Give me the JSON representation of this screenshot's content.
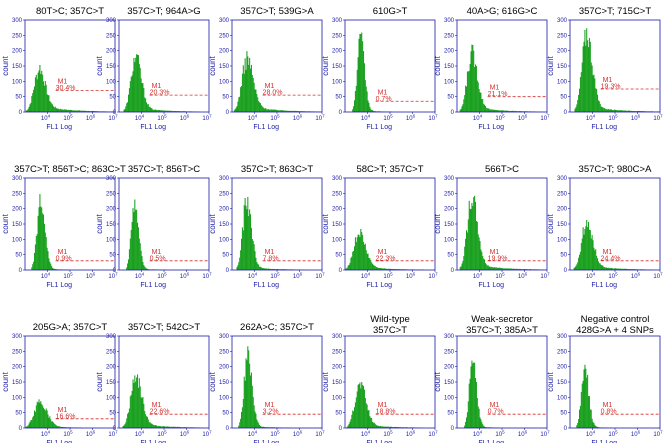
{
  "figure": {
    "background": "#ffffff"
  },
  "style": {
    "fill_color": "#19a01e",
    "axis_color": "#1a1aa8",
    "marker_color": "#d32f2f"
  },
  "chart_data": {
    "type": "histogram-grid",
    "rows": 3,
    "cols": 6,
    "y_label": "count",
    "x_label": "FL1 Log",
    "y_ticks": [
      "0",
      "50",
      "100",
      "150",
      "200",
      "250",
      "300"
    ],
    "y_range": [
      0,
      300
    ],
    "x_ticks": [
      {
        "base": "10",
        "exp": "4"
      },
      {
        "base": "10",
        "exp": "5"
      },
      {
        "base": "10",
        "exp": "6"
      },
      {
        "base": "10",
        "exp": "7"
      }
    ],
    "marker_label": "M1",
    "panels": [
      {
        "title": [
          "80T>C; 357C>T"
        ],
        "gate": "30.4%",
        "peak": 0.15,
        "height": 150,
        "width": 0.07,
        "tail": 0.18,
        "gate_y": 70
      },
      {
        "title": [
          "357C>T; 964A>G"
        ],
        "gate": "20.3%",
        "peak": 0.18,
        "height": 200,
        "width": 0.065,
        "tail": 0.1,
        "gate_y": 55
      },
      {
        "title": [
          "357C>T; 539G>A"
        ],
        "gate": "28.0%",
        "peak": 0.16,
        "height": 190,
        "width": 0.07,
        "tail": 0.14,
        "gate_y": 55
      },
      {
        "title": [
          "610G>T"
        ],
        "gate": "0.7%",
        "peak": 0.17,
        "height": 270,
        "width": 0.045,
        "tail": 0.02,
        "gate_y": 35
      },
      {
        "title": [
          "40A>G; 616G>C"
        ],
        "gate": "21.1%",
        "peak": 0.16,
        "height": 210,
        "width": 0.065,
        "tail": 0.1,
        "gate_y": 50
      },
      {
        "title": [
          "357C>T; 715C>T"
        ],
        "gate": "19.3%",
        "peak": 0.18,
        "height": 285,
        "width": 0.065,
        "tail": 0.1,
        "gate_y": 75
      },
      {
        "title": [
          "357C>T; 856T>C; 863C>T"
        ],
        "gate": "0.9%",
        "peak": 0.17,
        "height": 250,
        "width": 0.05,
        "tail": 0.02,
        "gate_y": 30
      },
      {
        "title": [
          "357C>T; 856T>C"
        ],
        "gate": "0.5%",
        "peak": 0.17,
        "height": 260,
        "width": 0.045,
        "tail": 0.02,
        "gate_y": 30
      },
      {
        "title": [
          "357C>T; 863C>T"
        ],
        "gate": "7.8%",
        "peak": 0.16,
        "height": 255,
        "width": 0.055,
        "tail": 0.05,
        "gate_y": 30
      },
      {
        "title": [
          "58C>T; 357C>T"
        ],
        "gate": "22.3%",
        "peak": 0.15,
        "height": 130,
        "width": 0.075,
        "tail": 0.12,
        "gate_y": 30
      },
      {
        "title": [
          "566T>C"
        ],
        "gate": "19.9%",
        "peak": 0.16,
        "height": 260,
        "width": 0.065,
        "tail": 0.1,
        "gate_y": 30
      },
      {
        "title": [
          "357C>T; 980C>A"
        ],
        "gate": "24.4%",
        "peak": 0.18,
        "height": 175,
        "width": 0.07,
        "tail": 0.12,
        "gate_y": 30
      },
      {
        "title": [
          "205G>A; 357C>T"
        ],
        "gate": "16.6%",
        "peak": 0.16,
        "height": 95,
        "width": 0.08,
        "tail": 0.09,
        "gate_y": 30
      },
      {
        "title": [
          "357C>T; 542C>T"
        ],
        "gate": "22.6%",
        "peak": 0.18,
        "height": 185,
        "width": 0.07,
        "tail": 0.12,
        "gate_y": 45
      },
      {
        "title": [
          "262A>C; 357C>T"
        ],
        "gate": "3.2%",
        "peak": 0.17,
        "height": 265,
        "width": 0.05,
        "tail": 0.03,
        "gate_y": 45
      },
      {
        "title": [
          "Wild-type",
          "357C>T"
        ],
        "gate": "18.8%",
        "peak": 0.16,
        "height": 160,
        "width": 0.07,
        "tail": 0.1,
        "gate_y": 45
      },
      {
        "title": [
          "Weak-secretor",
          "357C>T; 385A>T"
        ],
        "gate": "0.7%",
        "peak": 0.17,
        "height": 255,
        "width": 0.045,
        "tail": 0.02,
        "gate_y": 45
      },
      {
        "title": [
          "Negative control",
          "428G>A + 4 SNPs"
        ],
        "gate": "0.8%",
        "peak": 0.16,
        "height": 230,
        "width": 0.045,
        "tail": 0.02,
        "gate_y": 45
      }
    ]
  }
}
